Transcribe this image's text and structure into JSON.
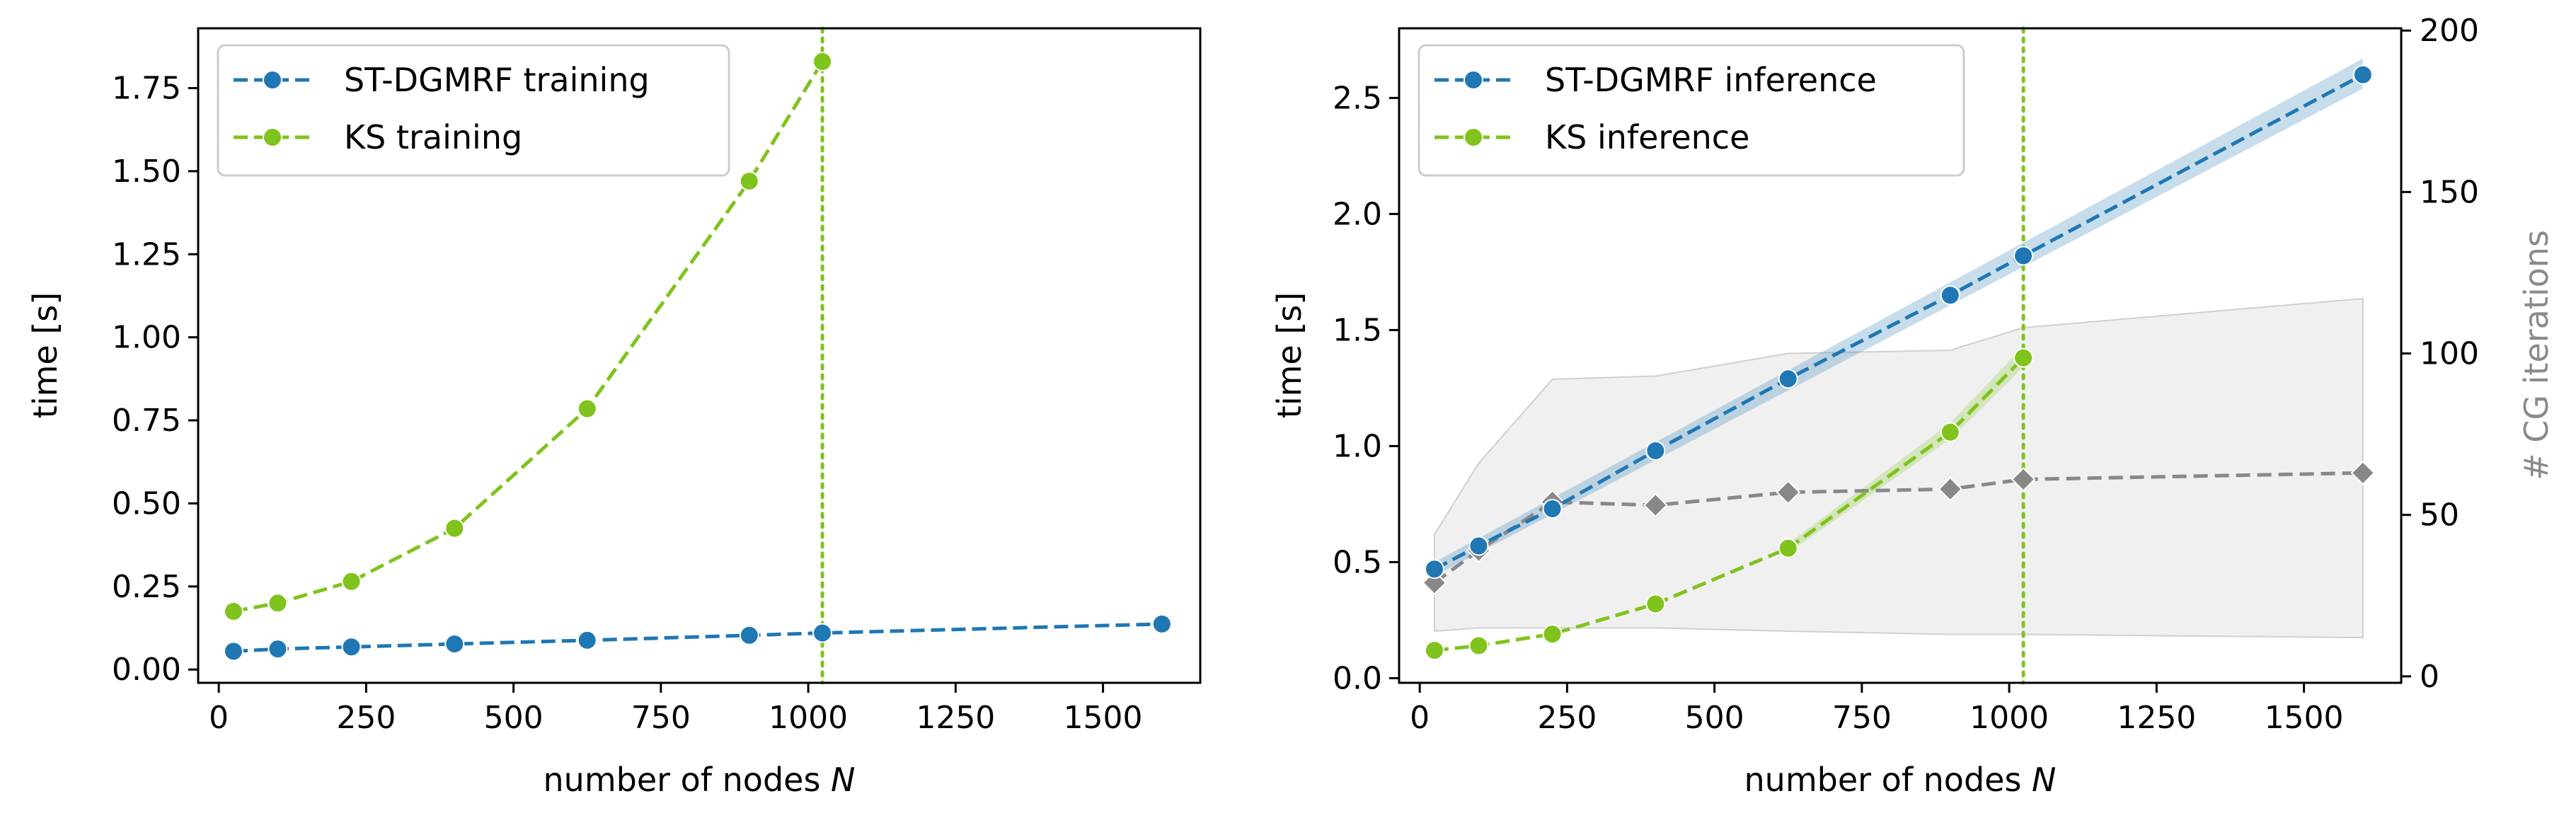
{
  "chart_data": [
    {
      "type": "line",
      "xlabel": "number of nodes N",
      "ylabel": "time [s]",
      "xlim": [
        -35,
        1665
      ],
      "ylim": [
        -0.04,
        1.93
      ],
      "xticks": [
        0,
        250,
        500,
        750,
        1000,
        1250,
        1500
      ],
      "xtick_labels": [
        "0",
        "250",
        "500",
        "750",
        "1000",
        "1250",
        "1500"
      ],
      "yticks": [
        0.0,
        0.25,
        0.5,
        0.75,
        1.0,
        1.25,
        1.5,
        1.75
      ],
      "ytick_labels": [
        "0.00",
        "0.25",
        "0.50",
        "0.75",
        "1.00",
        "1.25",
        "1.50",
        "1.75"
      ],
      "vline_x": 1024,
      "legend_position": "top-left",
      "series": [
        {
          "name": "ST-DGMRF training",
          "color": "#1f77b4",
          "x": [
            25,
            100,
            225,
            400,
            625,
            900,
            1024,
            1600
          ],
          "values": [
            0.055,
            0.062,
            0.068,
            0.077,
            0.088,
            0.103,
            0.11,
            0.137
          ]
        },
        {
          "name": "KS training",
          "color": "#7fc31c",
          "x": [
            25,
            100,
            225,
            400,
            625,
            900,
            1024
          ],
          "values": [
            0.175,
            0.2,
            0.265,
            0.425,
            0.785,
            1.47,
            1.83
          ]
        }
      ]
    },
    {
      "type": "line",
      "xlabel": "number of nodes N",
      "ylabel": "time [s]",
      "y2label": "# CG iterations",
      "xlim": [
        -35,
        1665
      ],
      "ylim": [
        -0.02,
        2.8
      ],
      "y2lim": [
        -2.0,
        200.7
      ],
      "xticks": [
        0,
        250,
        500,
        750,
        1000,
        1250,
        1500
      ],
      "xtick_labels": [
        "0",
        "250",
        "500",
        "750",
        "1000",
        "1250",
        "1500"
      ],
      "yticks": [
        0.0,
        0.5,
        1.0,
        1.5,
        2.0,
        2.5
      ],
      "ytick_labels": [
        "0.0",
        "0.5",
        "1.0",
        "1.5",
        "2.0",
        "2.5"
      ],
      "y2ticks": [
        0,
        50,
        100,
        150,
        200
      ],
      "y2tick_labels": [
        "0",
        "50",
        "100",
        "150",
        "200"
      ],
      "vline_x": 1024,
      "legend_position": "top-left",
      "series": [
        {
          "name": "ST-DGMRF inference",
          "color": "#1f77b4",
          "x": [
            25,
            100,
            225,
            400,
            625,
            900,
            1024,
            1600
          ],
          "values": [
            0.47,
            0.57,
            0.73,
            0.98,
            1.29,
            1.65,
            1.82,
            2.6
          ],
          "band": {
            "x": [
              25,
              1600
            ],
            "lower": [
              0.44,
              2.54
            ],
            "upper": [
              0.5,
              2.67
            ]
          }
        },
        {
          "name": "KS inference",
          "color": "#7fc31c",
          "x": [
            25,
            100,
            225,
            400,
            625,
            900,
            1024
          ],
          "values": [
            0.12,
            0.14,
            0.19,
            0.32,
            0.56,
            1.06,
            1.38
          ],
          "band": {
            "x": [
              625,
              900,
              1024
            ],
            "lower": [
              0.54,
              1.03,
              1.34
            ],
            "upper": [
              0.58,
              1.1,
              1.43
            ]
          }
        },
        {
          "name": "CG iterations",
          "axis": "y2",
          "color": "#888888",
          "marker": "diamond",
          "x": [
            25,
            100,
            225,
            400,
            625,
            900,
            1024,
            1600
          ],
          "values": [
            29,
            39,
            54,
            53,
            57,
            58,
            61,
            63
          ],
          "band": {
            "x": [
              25,
              100,
              225,
              400,
              625,
              900,
              1024,
              1600
            ],
            "lower": [
              14,
              15,
              15,
              15,
              14,
              13,
              13,
              12
            ],
            "upper": [
              44,
              66,
              92,
              93,
              100,
              101,
              108,
              117
            ]
          }
        }
      ]
    }
  ]
}
